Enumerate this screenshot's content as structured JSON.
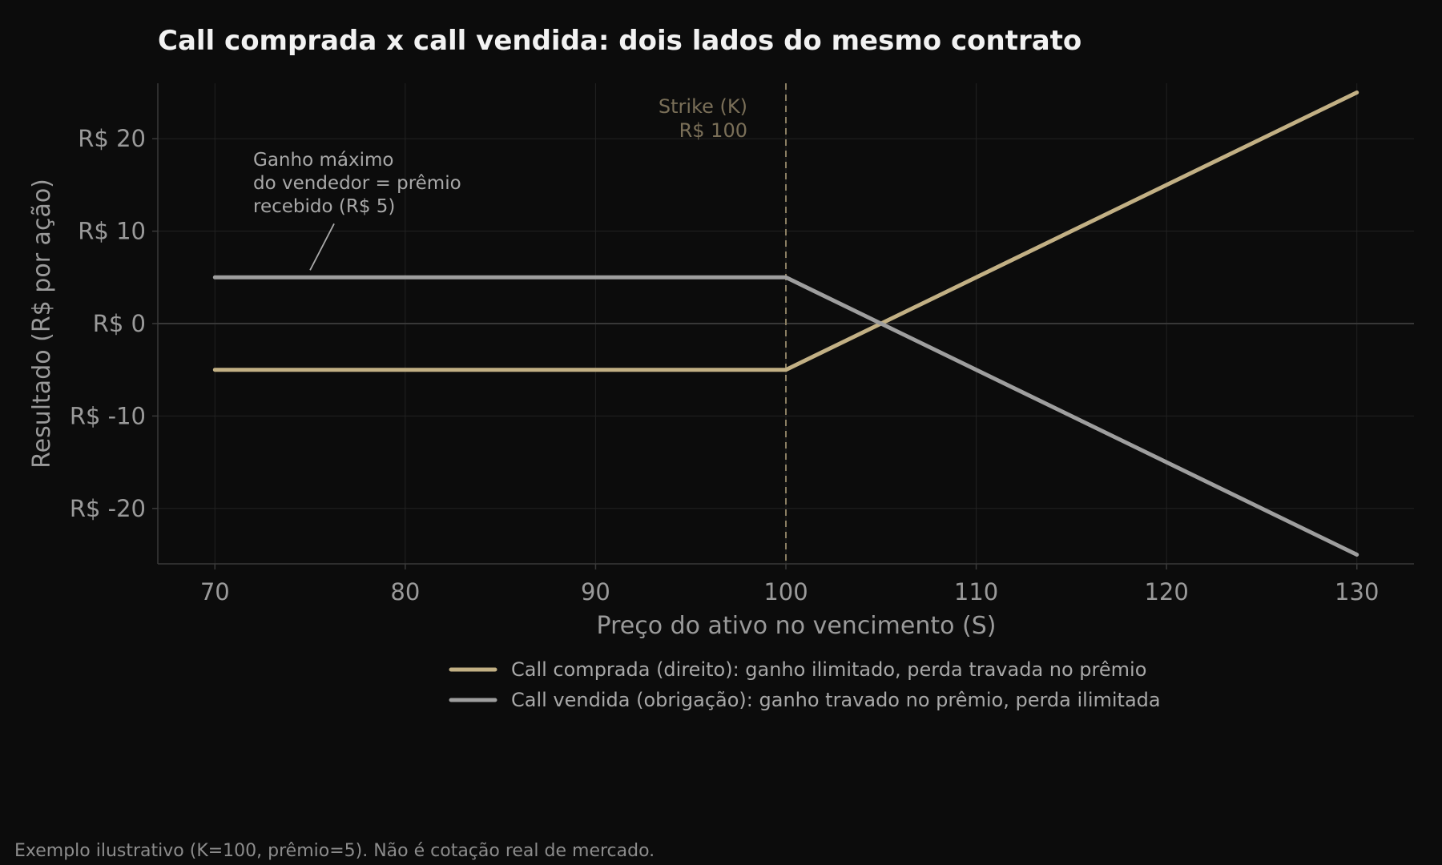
{
  "chart_data": {
    "type": "line",
    "title": "Call comprada x call vendida: dois lados do mesmo contrato",
    "xlabel": "Preço do ativo no vencimento (S)",
    "ylabel": "Resultado (R$ por ação)",
    "xlim": [
      67,
      133
    ],
    "ylim": [
      -26,
      26
    ],
    "xticks": [
      70,
      80,
      90,
      100,
      110,
      120,
      130
    ],
    "xtick_labels": [
      "70",
      "80",
      "90",
      "100",
      "110",
      "120",
      "130"
    ],
    "yticks": [
      20,
      10,
      0,
      -10,
      -20
    ],
    "ytick_labels": [
      "R$ 20",
      "R$ 10",
      "R$ 0",
      "R$ -10",
      "R$ -20"
    ],
    "grid": true,
    "legend_position": "bottom-center",
    "series": [
      {
        "name": "Call comprada (direito): ganho ilimitado, perda travada no prêmio",
        "color": "#c2b084",
        "x": [
          70,
          100,
          130
        ],
        "y": [
          -5,
          -5,
          25
        ]
      },
      {
        "name": "Call vendida (obrigação): ganho travado no prêmio, perda ilimitada",
        "color": "#9e9e9e",
        "x": [
          70,
          100,
          130
        ],
        "y": [
          5,
          5,
          -25
        ]
      }
    ],
    "strike": {
      "x": 100,
      "label_line1": "Strike (K)",
      "label_line2": "R$ 100",
      "color": "#8a7e62"
    },
    "annotation": {
      "lines": [
        "Ganho máximo",
        "do vendedor = prêmio",
        "recebido (R$ 5)"
      ],
      "x": 75,
      "y": 5
    },
    "footnote": "Exemplo ilustrativo (K=100, prêmio=5). Não é cotação real de mercado."
  }
}
